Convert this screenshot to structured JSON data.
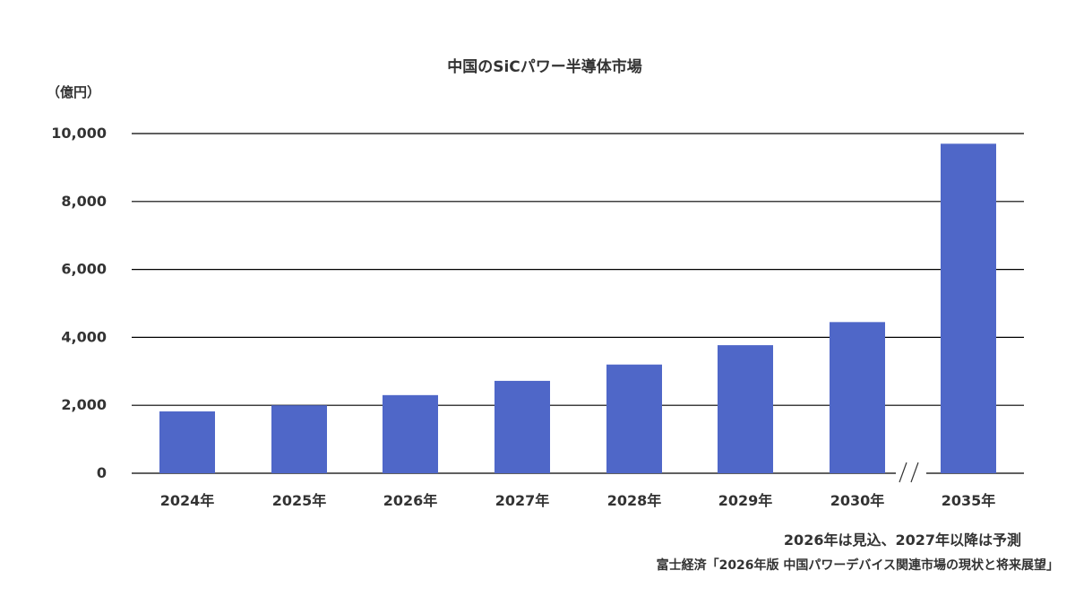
{
  "chart_data": {
    "type": "bar",
    "title": "中国のSiCパワー半導体市場",
    "unit_label": "（億円）",
    "categories": [
      "2024年",
      "2025年",
      "2026年",
      "2027年",
      "2028年",
      "2029年",
      "2030年",
      "2035年"
    ],
    "values": [
      1820,
      2000,
      2300,
      2720,
      3200,
      3770,
      4450,
      9700
    ],
    "ylim": [
      0,
      10000
    ],
    "yticks": [
      "0",
      "2,000",
      "4,000",
      "6,000",
      "8,000",
      "10,000"
    ],
    "ytick_values": [
      0,
      2000,
      4000,
      6000,
      8000,
      10000
    ],
    "grid": true,
    "axis_break_between": [
      "2030年",
      "2035年"
    ],
    "bar_color": "#4f67c8",
    "notes": [
      "2026年は見込、2027年以降は予測"
    ],
    "source": "富士経済「2026年版 中国パワーデバイス関連市場の現状と将来展望」"
  }
}
